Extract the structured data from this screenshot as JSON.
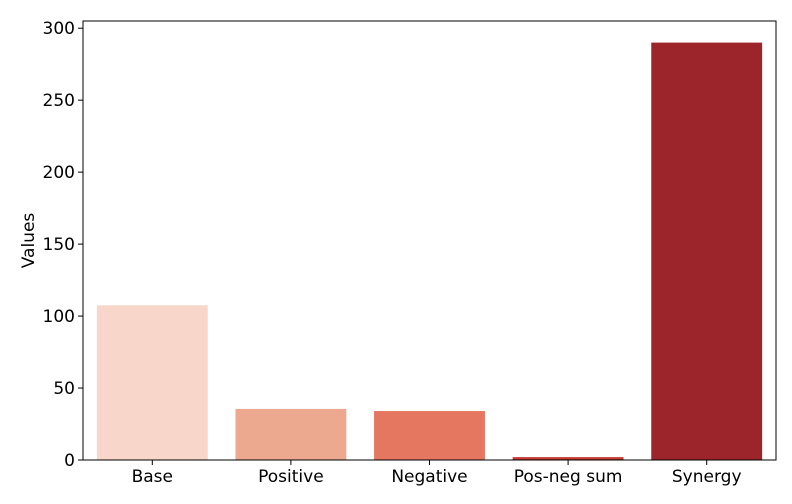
{
  "chart_data": {
    "type": "bar",
    "title": "",
    "xlabel": "",
    "ylabel": "Values",
    "categories": [
      "Base",
      "Positive",
      "Negative",
      "Pos-neg sum",
      "Synergy"
    ],
    "values": [
      107.5,
      35.5,
      34.0,
      2.0,
      290.0
    ],
    "colors": [
      "#f8d6c9",
      "#eda890",
      "#e57760",
      "#c63a31",
      "#9b252b"
    ],
    "ylim": [
      0,
      305
    ],
    "yticks": [
      0,
      50,
      100,
      150,
      200,
      250,
      300
    ],
    "grid": false,
    "legend": "none"
  }
}
